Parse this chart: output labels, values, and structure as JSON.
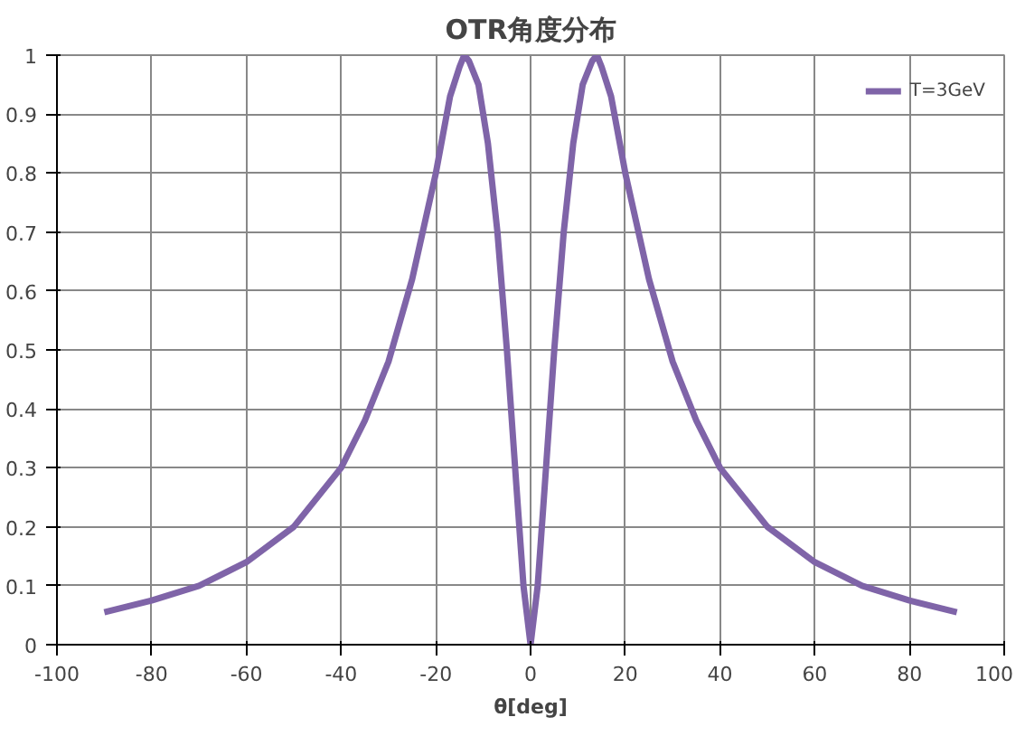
{
  "chart_data": {
    "type": "line",
    "title": "OTR角度分布",
    "xlabel": "θ[deg]",
    "x": [
      -90,
      -80,
      -70,
      -60,
      -50,
      -40,
      -35,
      -30,
      -25,
      -20,
      -17,
      -15,
      -14,
      -13,
      -11,
      -9,
      -7,
      -5,
      -3,
      -1.5,
      0,
      1.5,
      3,
      5,
      7,
      9,
      11,
      13,
      14,
      15,
      17,
      20,
      25,
      30,
      35,
      40,
      50,
      60,
      70,
      80,
      90
    ],
    "series": [
      {
        "name": "T=3GeV",
        "color": "#7f64a8",
        "values": [
          0.055,
          0.075,
          0.1,
          0.14,
          0.2,
          0.3,
          0.38,
          0.48,
          0.62,
          0.8,
          0.93,
          0.98,
          1.0,
          0.99,
          0.95,
          0.85,
          0.7,
          0.5,
          0.27,
          0.1,
          0.0,
          0.1,
          0.27,
          0.5,
          0.7,
          0.85,
          0.95,
          0.99,
          1.0,
          0.98,
          0.93,
          0.8,
          0.62,
          0.48,
          0.38,
          0.3,
          0.2,
          0.14,
          0.1,
          0.075,
          0.055
        ]
      }
    ],
    "xlim": [
      -100,
      100
    ],
    "xticks": [
      -100,
      -80,
      -60,
      -40,
      -20,
      0,
      20,
      40,
      60,
      80,
      100
    ],
    "ylim": [
      0,
      1
    ],
    "yticks": [
      0,
      0.1,
      0.2,
      0.3,
      0.4,
      0.5,
      0.6,
      0.7,
      0.8,
      0.9,
      1
    ],
    "grid": true,
    "legend": "top right",
    "marker": "none",
    "line_style": "solid"
  }
}
